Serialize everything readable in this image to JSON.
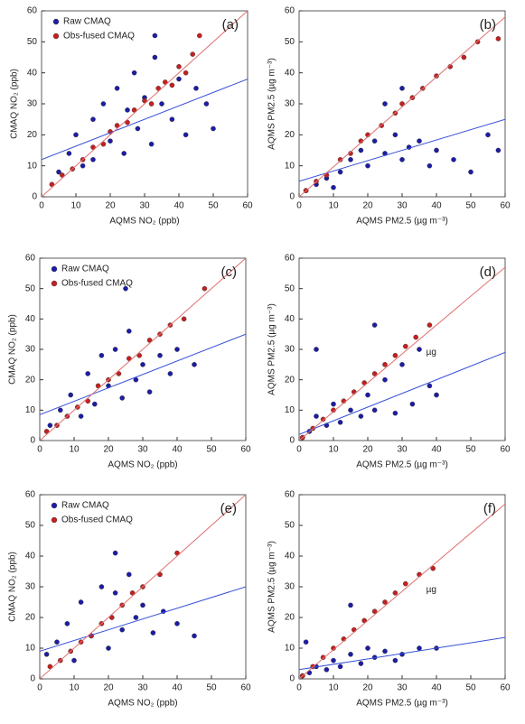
{
  "chart_data": [
    {
      "type": "scatter",
      "panel_label": "(a)",
      "x_label": "AQMS NO₂ (ppb)",
      "y_label": "CMAQ NO₂ (ppb)",
      "xlim": [
        0,
        60
      ],
      "ylim": [
        0,
        60
      ],
      "xticks": [
        0,
        10,
        20,
        30,
        40,
        50,
        60
      ],
      "yticks": [
        0,
        10,
        20,
        30,
        40,
        50,
        60
      ],
      "legend": "upper left",
      "series": [
        {
          "name": "Raw CMAQ",
          "color": "#1c1ca6",
          "x": [
            5,
            8,
            10,
            12,
            15,
            15,
            18,
            20,
            22,
            24,
            25,
            27,
            28,
            30,
            32,
            33,
            35,
            38,
            40,
            42,
            45,
            48,
            50,
            33
          ],
          "y": [
            8,
            14,
            20,
            10,
            25,
            12,
            30,
            18,
            35,
            14,
            28,
            40,
            22,
            32,
            17,
            45,
            30,
            25,
            38,
            20,
            35,
            30,
            22,
            52
          ]
        },
        {
          "name": "Obs-fused CMAQ",
          "color": "#c42020",
          "x": [
            3,
            6,
            9,
            12,
            15,
            18,
            20,
            22,
            25,
            27,
            30,
            32,
            34,
            36,
            38,
            40,
            42,
            44,
            46
          ],
          "y": [
            4,
            7,
            9,
            12,
            16,
            17,
            21,
            23,
            24,
            28,
            31,
            30,
            35,
            37,
            36,
            42,
            40,
            46,
            52
          ]
        }
      ],
      "fit_lines": [
        {
          "color": "#3650d8",
          "x": [
            0,
            60
          ],
          "y": [
            12,
            38
          ]
        },
        {
          "color": "#e07070",
          "x": [
            0,
            60
          ],
          "y": [
            0,
            60
          ]
        }
      ]
    },
    {
      "type": "scatter",
      "panel_label": "(b)",
      "x_label": "AQMS PM2.5 (µg m⁻³)",
      "y_label": "AQMS PM2.5 (µg m⁻³)",
      "xlim": [
        0,
        60
      ],
      "ylim": [
        0,
        60
      ],
      "xticks": [
        0,
        10,
        20,
        30,
        40,
        50,
        60
      ],
      "yticks": [
        0,
        10,
        20,
        30,
        40,
        50,
        60
      ],
      "series": [
        {
          "color": "#1c1ca6",
          "x": [
            2,
            5,
            8,
            10,
            12,
            15,
            18,
            20,
            22,
            25,
            28,
            30,
            32,
            35,
            38,
            40,
            45,
            50,
            55,
            58,
            25,
            30
          ],
          "y": [
            2,
            4,
            6,
            3,
            8,
            12,
            15,
            10,
            18,
            14,
            20,
            12,
            16,
            18,
            10,
            15,
            12,
            8,
            20,
            15,
            30,
            35
          ]
        },
        {
          "color": "#c42020",
          "x": [
            2,
            5,
            8,
            12,
            15,
            18,
            20,
            24,
            28,
            30,
            33,
            36,
            40,
            44,
            48,
            52,
            58
          ],
          "y": [
            2,
            5,
            7,
            12,
            14,
            18,
            20,
            23,
            27,
            30,
            32,
            35,
            39,
            42,
            45,
            50,
            51
          ]
        }
      ],
      "fit_lines": [
        {
          "color": "#3650d8",
          "x": [
            0,
            60
          ],
          "y": [
            5,
            25
          ]
        },
        {
          "color": "#e07070",
          "x": [
            0,
            60
          ],
          "y": [
            0,
            58
          ]
        }
      ]
    },
    {
      "type": "scatter",
      "panel_label": "(c)",
      "x_label": "AQMS NO₂ (ppb)",
      "y_label": "CMAQ NO₂ (ppb)",
      "xlim": [
        0,
        60
      ],
      "ylim": [
        0,
        60
      ],
      "xticks": [
        0,
        10,
        20,
        30,
        40,
        50,
        60
      ],
      "yticks": [
        0,
        10,
        20,
        30,
        40,
        50,
        60
      ],
      "legend": "upper left",
      "series": [
        {
          "name": "Raw CMAQ",
          "color": "#1c1ca6",
          "x": [
            3,
            6,
            9,
            12,
            14,
            16,
            18,
            20,
            22,
            24,
            26,
            28,
            30,
            32,
            35,
            38,
            40,
            45,
            25
          ],
          "y": [
            5,
            10,
            15,
            8,
            22,
            12,
            28,
            18,
            30,
            14,
            36,
            20,
            25,
            16,
            28,
            22,
            30,
            25,
            50
          ]
        },
        {
          "name": "Obs-fused CMAQ",
          "color": "#c42020",
          "x": [
            2,
            5,
            8,
            11,
            14,
            17,
            20,
            23,
            26,
            29,
            32,
            35,
            38,
            42,
            48
          ],
          "y": [
            3,
            5,
            8,
            11,
            13,
            18,
            20,
            22,
            27,
            28,
            33,
            35,
            38,
            40,
            50
          ]
        }
      ],
      "fit_lines": [
        {
          "color": "#3650d8",
          "x": [
            0,
            60
          ],
          "y": [
            8.5,
            35
          ]
        },
        {
          "color": "#e07070",
          "x": [
            0,
            60
          ],
          "y": [
            0,
            60
          ]
        }
      ]
    },
    {
      "type": "scatter",
      "panel_label": "(d)",
      "x_label": "AQMS PM2.5 (µg m⁻³)",
      "y_label": "AQMS PM2.5 (µg m⁻³)",
      "annotation": "µg",
      "xlim": [
        0,
        60
      ],
      "ylim": [
        0,
        60
      ],
      "xticks": [
        0,
        10,
        20,
        30,
        40,
        50,
        60
      ],
      "yticks": [
        0,
        10,
        20,
        30,
        40,
        50,
        60
      ],
      "series": [
        {
          "color": "#1c1ca6",
          "x": [
            1,
            3,
            5,
            8,
            10,
            12,
            15,
            18,
            20,
            22,
            25,
            28,
            30,
            33,
            35,
            38,
            40,
            5,
            22
          ],
          "y": [
            1,
            3,
            8,
            5,
            12,
            6,
            10,
            8,
            15,
            10,
            20,
            9,
            25,
            12,
            30,
            18,
            15,
            30,
            38
          ]
        },
        {
          "color": "#c42020",
          "x": [
            1,
            4,
            7,
            10,
            13,
            16,
            19,
            22,
            25,
            28,
            31,
            34,
            38
          ],
          "y": [
            1,
            4,
            7,
            10,
            13,
            16,
            19,
            22,
            25,
            28,
            31,
            34,
            38
          ]
        }
      ],
      "fit_lines": [
        {
          "color": "#3650d8",
          "x": [
            0,
            60
          ],
          "y": [
            2,
            29
          ]
        },
        {
          "color": "#e07070",
          "x": [
            0,
            60
          ],
          "y": [
            0,
            57
          ]
        }
      ]
    },
    {
      "type": "scatter",
      "panel_label": "(e)",
      "x_label": "AQMS NO₂ (ppb)",
      "y_label": "CMAQ NO₂ (ppb)",
      "xlim": [
        0,
        60
      ],
      "ylim": [
        0,
        60
      ],
      "xticks": [
        0,
        10,
        20,
        30,
        40,
        50,
        60
      ],
      "yticks": [
        0,
        10,
        20,
        30,
        40,
        50,
        60
      ],
      "legend": "upper left",
      "series": [
        {
          "name": "Raw CMAQ",
          "color": "#1c1ca6",
          "x": [
            2,
            5,
            8,
            10,
            12,
            15,
            18,
            20,
            22,
            24,
            26,
            28,
            30,
            33,
            36,
            40,
            45,
            22
          ],
          "y": [
            8,
            12,
            18,
            6,
            25,
            14,
            30,
            10,
            28,
            16,
            34,
            20,
            24,
            15,
            22,
            18,
            14,
            41
          ]
        },
        {
          "name": "Obs-fused CMAQ",
          "color": "#c42020",
          "x": [
            3,
            6,
            9,
            12,
            15,
            18,
            21,
            24,
            27,
            30,
            35,
            40
          ],
          "y": [
            4,
            6,
            9,
            12,
            14,
            18,
            20,
            24,
            28,
            30,
            34,
            41
          ]
        }
      ],
      "fit_lines": [
        {
          "color": "#3650d8",
          "x": [
            0,
            60
          ],
          "y": [
            9,
            30
          ]
        },
        {
          "color": "#e07070",
          "x": [
            0,
            60
          ],
          "y": [
            0,
            60
          ]
        }
      ]
    },
    {
      "type": "scatter",
      "panel_label": "(f)",
      "x_label": "AQMS PM2.5 (µg m⁻³)",
      "y_label": "AQMS PM2.5 (µg m⁻³)",
      "annotation": "µg",
      "xlim": [
        0,
        60
      ],
      "ylim": [
        0,
        60
      ],
      "xticks": [
        0,
        10,
        20,
        30,
        40,
        50,
        60
      ],
      "yticks": [
        0,
        10,
        20,
        30,
        40,
        50,
        60
      ],
      "series": [
        {
          "color": "#1c1ca6",
          "x": [
            1,
            3,
            5,
            8,
            10,
            12,
            15,
            18,
            20,
            22,
            25,
            28,
            30,
            35,
            40,
            2,
            15
          ],
          "y": [
            1,
            2,
            4,
            3,
            6,
            4,
            8,
            5,
            10,
            7,
            9,
            6,
            8,
            10,
            10,
            12,
            24
          ]
        },
        {
          "color": "#c42020",
          "x": [
            1,
            4,
            7,
            10,
            13,
            16,
            19,
            22,
            25,
            28,
            31,
            35,
            39
          ],
          "y": [
            1,
            4,
            7,
            10,
            13,
            16,
            19,
            22,
            25,
            28,
            31,
            34,
            36
          ]
        }
      ],
      "fit_lines": [
        {
          "color": "#3650d8",
          "x": [
            0,
            60
          ],
          "y": [
            3,
            13.5
          ]
        },
        {
          "color": "#e07070",
          "x": [
            0,
            60
          ],
          "y": [
            0,
            57
          ]
        }
      ]
    }
  ]
}
